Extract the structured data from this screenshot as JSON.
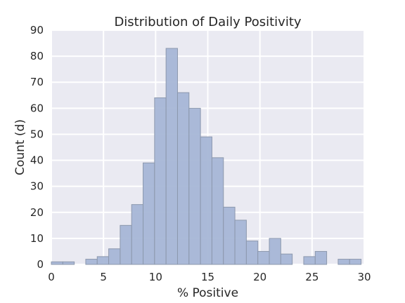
{
  "chart_data": {
    "type": "bar",
    "title": "Distribution of Daily Positivity",
    "xlabel": "% Positive",
    "ylabel": "Count (d)",
    "xlim": [
      0,
      30
    ],
    "ylim": [
      0,
      90
    ],
    "x_ticks": [
      0,
      5,
      10,
      15,
      20,
      25,
      30
    ],
    "y_ticks": [
      0,
      10,
      20,
      30,
      40,
      50,
      60,
      70,
      80,
      90
    ],
    "grid": true,
    "bin_edges": [
      0,
      1.1,
      2.2,
      3.3,
      4.4,
      5.5,
      6.6,
      7.7,
      8.8,
      9.9,
      11.0,
      12.1,
      13.2,
      14.3,
      15.4,
      16.5,
      17.6,
      18.7,
      19.8,
      20.9,
      22.0,
      23.1,
      24.2,
      25.3,
      26.4,
      27.5,
      28.6,
      29.7
    ],
    "values": [
      1,
      1,
      0,
      2,
      3,
      6,
      15,
      23,
      39,
      64,
      83,
      66,
      60,
      49,
      41,
      22,
      17,
      9,
      5,
      10,
      4,
      0,
      3,
      5,
      0,
      2,
      2
    ],
    "colors": {
      "bar_fill": "#a7b6d6",
      "bar_stroke": "#8c98ad",
      "plot_bg": "#eaeaf2",
      "grid": "#ffffff"
    }
  }
}
